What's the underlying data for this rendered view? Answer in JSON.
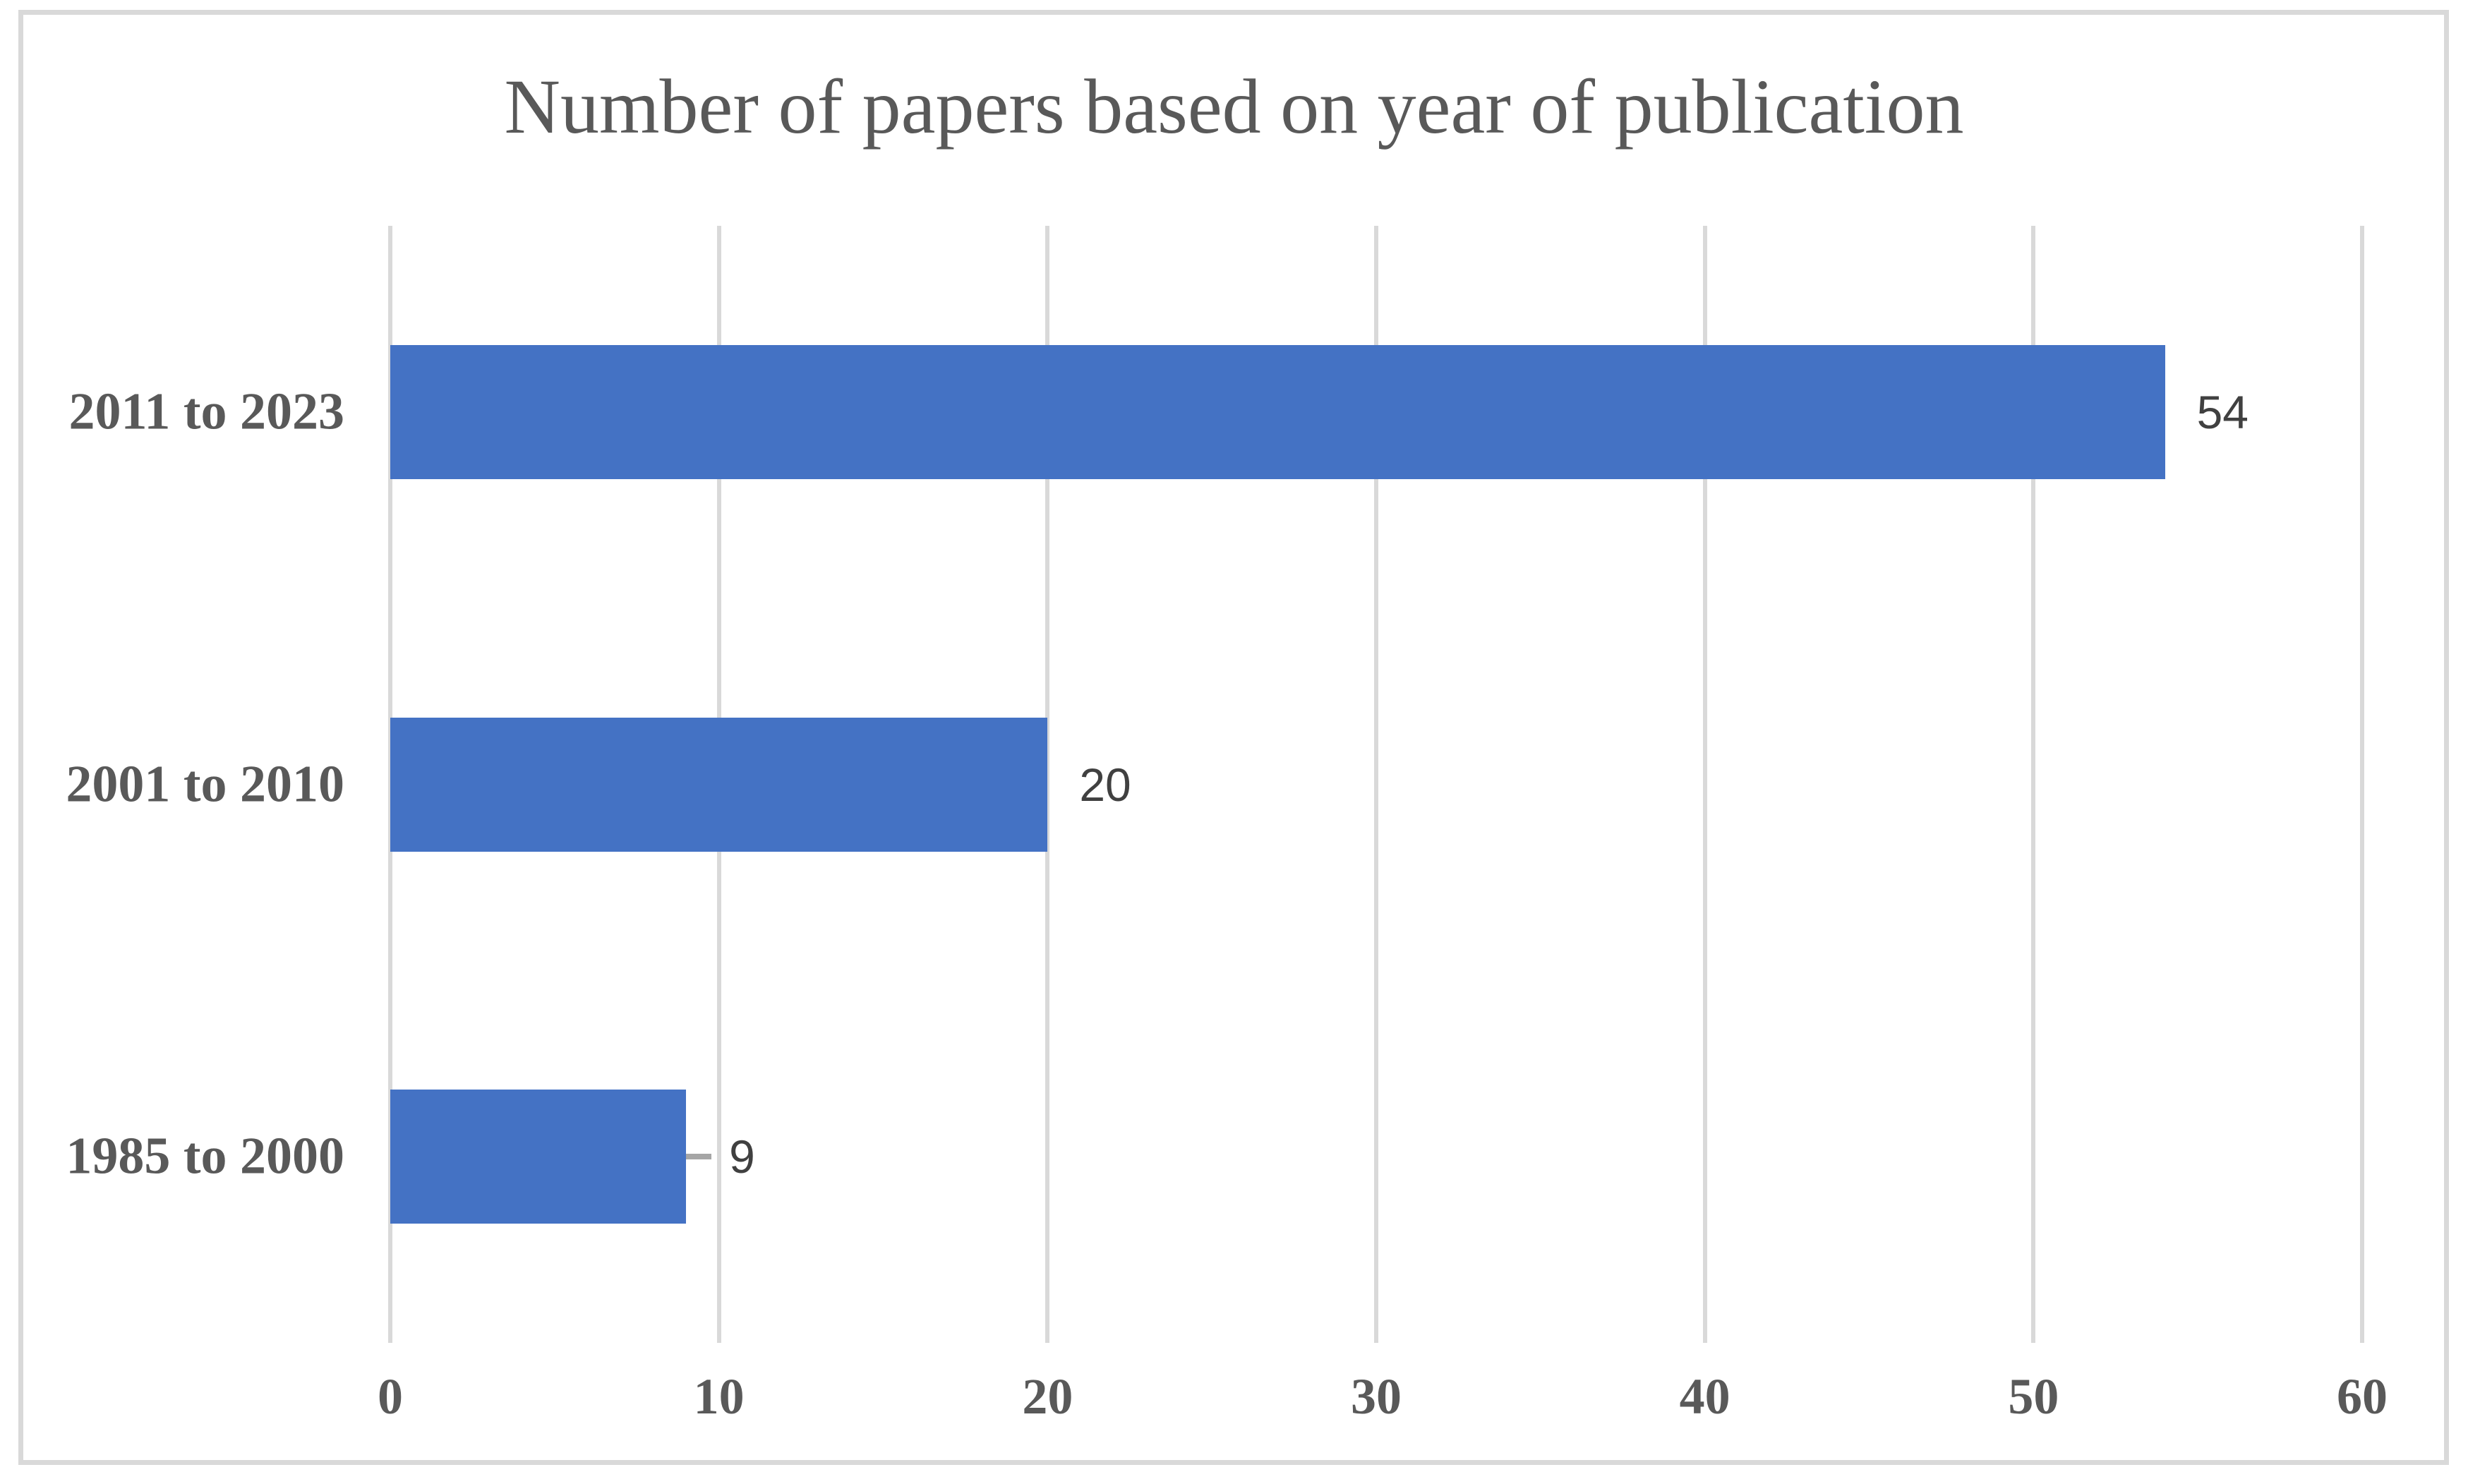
{
  "chart_data": {
    "type": "bar",
    "orientation": "horizontal",
    "title": "Number of papers based on year of publication",
    "categories": [
      "2011 to 2023",
      "2001 to 2010",
      "1985 to 2000"
    ],
    "values": [
      54,
      20,
      9
    ],
    "data_labels": [
      "54",
      "20",
      "9"
    ],
    "xlabel": "",
    "ylabel": "",
    "xlim": [
      0,
      60
    ],
    "x_ticks": [
      0,
      10,
      20,
      30,
      40,
      50,
      60
    ],
    "grid": true,
    "legend": false,
    "leader_line_points": [
      false,
      false,
      true
    ],
    "colors": {
      "bar": "#4472C4",
      "gridline": "#D9D9D9",
      "frame_border": "#D9D9D9",
      "title_text": "#595959",
      "axis_text": "#595959",
      "data_label_text": "#404040",
      "leader_line": "#A6A6A6",
      "background": "#FFFFFF"
    }
  }
}
